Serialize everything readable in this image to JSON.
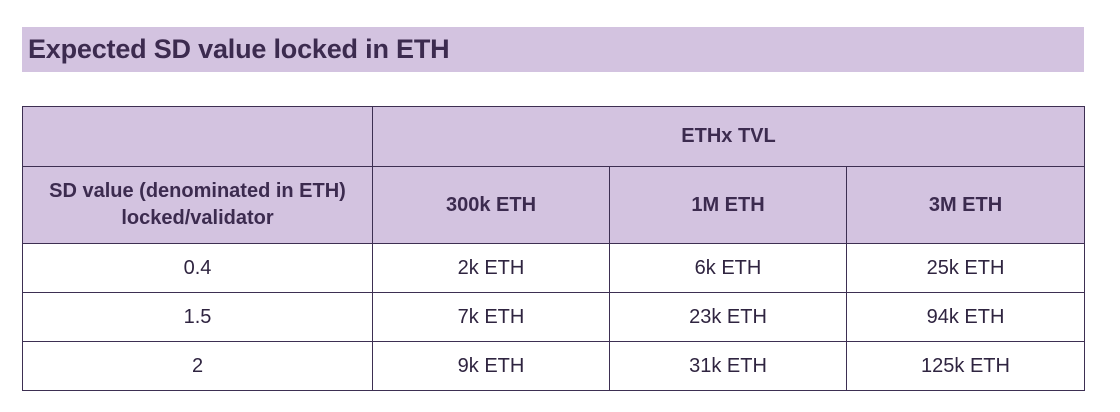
{
  "title": "Expected SD value locked in ETH",
  "table": {
    "group_header": "ETHx TVL",
    "row_label_header": "SD value (denominated in ETH) locked/validator",
    "columns": [
      "300k ETH",
      "1M ETH",
      "3M ETH"
    ],
    "rows": [
      {
        "label": "0.4",
        "values": [
          "2k ETH",
          "6k ETH",
          "25k ETH"
        ]
      },
      {
        "label": "1.5",
        "values": [
          "7k ETH",
          "23k ETH",
          "94k ETH"
        ]
      },
      {
        "label": "2",
        "values": [
          "9k ETH",
          "31k ETH",
          "125k ETH"
        ]
      }
    ]
  },
  "colors": {
    "header_background": "#d3c3e0",
    "title_text": "#3c2b4f",
    "border": "#3d2f52"
  }
}
